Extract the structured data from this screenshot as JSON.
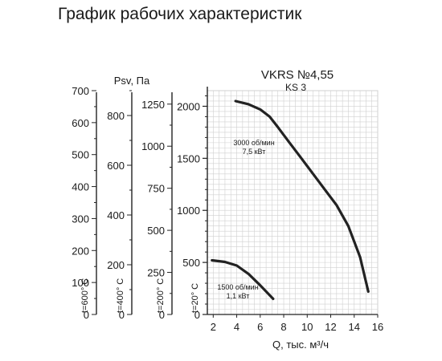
{
  "page_title": "График рабочих характеристик",
  "colors": {
    "curve": "#222222",
    "grid": "#d0d0d0",
    "axis": "#222222"
  },
  "chart_data": {
    "type": "line",
    "title": "VKRS №4,55",
    "subtitle": "KS 3",
    "xlabel": "Q, тыс. м³/ч",
    "ylabel": "Psv, Па",
    "xlim": [
      1.5,
      16
    ],
    "ylim": [
      0,
      2150
    ],
    "x_ticks": [
      "2",
      "4",
      "6",
      "8",
      "10",
      "12",
      "14",
      "16"
    ],
    "y_ticks": [
      "0",
      "500",
      "1000",
      "1500",
      "2000"
    ],
    "grid": true,
    "aux_axes": [
      {
        "label": "t=600° C",
        "ticks": [
          "0",
          "100",
          "200",
          "300",
          "400",
          "500",
          "600",
          "700"
        ],
        "max": 700
      },
      {
        "label": "t=400° C",
        "ticks": [
          "0",
          "200",
          "400",
          "600",
          "800"
        ],
        "max": 900
      },
      {
        "label": "t=200° C",
        "ticks": [
          "0",
          "250",
          "500",
          "750",
          "1000",
          "1250"
        ],
        "max": 1330
      },
      {
        "label": "t=20° C",
        "ticks": [
          "0",
          "500",
          "1000",
          "1500",
          "2000"
        ],
        "max": 2150
      }
    ],
    "series": [
      {
        "name": "3000 об/мин\n7,5 кВт",
        "x": [
          3.9,
          5.0,
          6.0,
          6.8,
          7.5,
          8.5,
          9.5,
          10.5,
          11.5,
          12.5,
          13.5,
          14.5,
          15.2
        ],
        "y": [
          2050,
          2020,
          1970,
          1900,
          1800,
          1650,
          1500,
          1350,
          1200,
          1050,
          850,
          550,
          220
        ]
      },
      {
        "name": "1500 об/мин\n1,1 кВт",
        "x": [
          1.9,
          3.0,
          4.0,
          5.0,
          6.0,
          7.1
        ],
        "y": [
          520,
          505,
          470,
          390,
          280,
          150
        ]
      }
    ]
  }
}
